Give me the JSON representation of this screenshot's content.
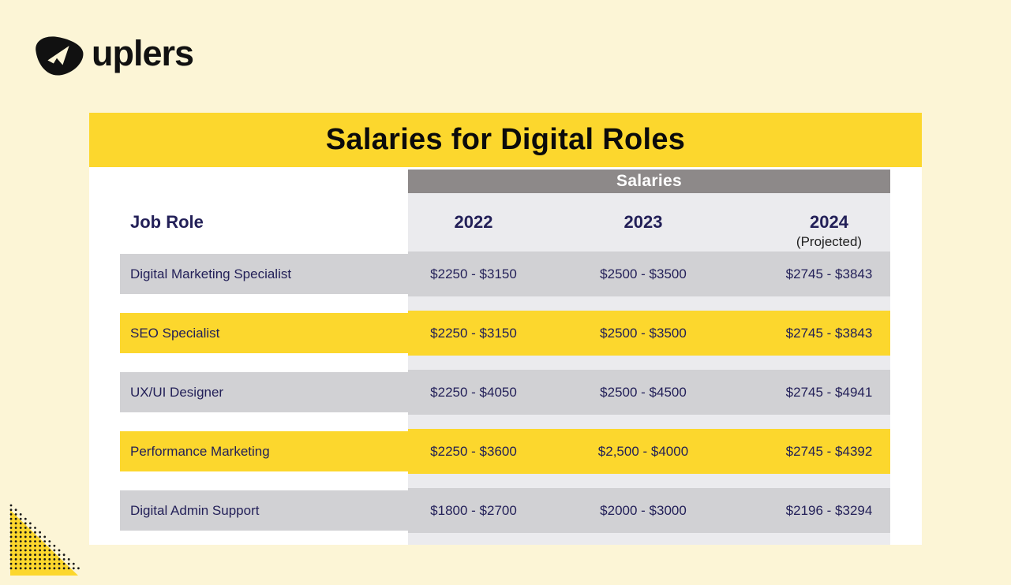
{
  "logo": {
    "brand": "uplers"
  },
  "title": "Salaries for Digital Roles",
  "table": {
    "group_header": "Salaries",
    "job_role_header": "Job Role",
    "years": [
      "2022",
      "2023",
      "2024"
    ],
    "projected_note": "(Projected)"
  },
  "chart_data": {
    "type": "table",
    "title": "Salaries for Digital Roles",
    "column_group_header": "Salaries",
    "columns": [
      "Job Role",
      "2022",
      "2023",
      "2024 (Projected)"
    ],
    "rows": [
      [
        "Digital Marketing Specialist",
        "$2250 - $3150",
        "$2500 - $3500",
        "$2745 - $3843"
      ],
      [
        "SEO Specialist",
        "$2250 - $3150",
        "$2500 - $3500",
        "$2745 - $3843"
      ],
      [
        "UX/UI Designer",
        "$2250 - $4050",
        "$2500 - $4500",
        "$2745 - $4941"
      ],
      [
        "Performance Marketing",
        "$2250 - $3600",
        "$2,500 - $4000",
        "$2745 - $4392"
      ],
      [
        "Digital Admin Support",
        "$1800 - $2700",
        "$2000 - $3000",
        "$2196 - $3294"
      ]
    ],
    "row_highlight": [
      false,
      true,
      false,
      true,
      false
    ],
    "highlighted_rows": [
      "SEO Specialist",
      "Performance Marketing"
    ]
  },
  "colors": {
    "background": "#FCF5D6",
    "accent_yellow": "#FCD72D",
    "header_gray": "#8D8989",
    "column_strip_gray": "#EBEBEE",
    "row_gray": "#D1D1D4",
    "text_navy": "#232058",
    "text_black": "#111111",
    "card_white": "#FFFFFF"
  }
}
